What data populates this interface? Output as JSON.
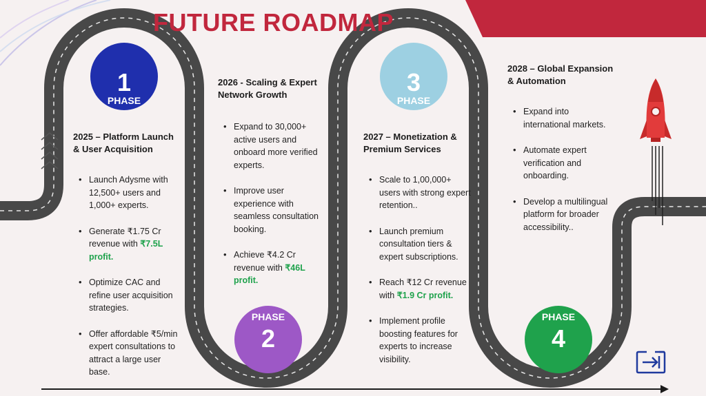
{
  "title": "FUTURE ROADMAP",
  "colors": {
    "brand_red": "#c1273d",
    "phase1": "#1f2fad",
    "phase2": "#9d58c6",
    "phase3": "#9dd0e2",
    "phase4": "#1fa24c",
    "highlight": "#1fa24c",
    "road": "#444444"
  },
  "phases": [
    {
      "number": "1",
      "label": "PHASE"
    },
    {
      "number": "2",
      "label": "PHASE"
    },
    {
      "number": "3",
      "label": "PHASE"
    },
    {
      "number": "4",
      "label": "PHASE"
    }
  ],
  "sections": [
    {
      "heading": "2025 – Platform Launch\n& User Acquisition",
      "bullets": [
        {
          "text": "Launch Adysme with 12,500+ users and 1,000+ experts."
        },
        {
          "text": "Generate ₹1.75 Cr revenue with ",
          "highlight": "₹7.5L profit."
        },
        {
          "text": "Optimize CAC and refine user acquisition strategies."
        },
        {
          "text": "Offer affordable ₹5/min expert consultations to attract a large user base."
        }
      ]
    },
    {
      "heading": "2026 - Scaling & Expert\nNetwork Growth",
      "bullets": [
        {
          "text": "Expand to 30,000+ active users and onboard more verified experts."
        },
        {
          "text": "Improve user experience with seamless consultation booking."
        },
        {
          "text": "Achieve ₹4.2 Cr revenue with ",
          "highlight": "₹46L profit."
        }
      ]
    },
    {
      "heading": "2027 – Monetization &\nPremium Services",
      "bullets": [
        {
          "text": "Scale to 1,00,000+ users with strong expert retention.."
        },
        {
          "text": "Launch premium consultation tiers & expert subscriptions."
        },
        {
          "text": "Reach ₹12 Cr revenue with ",
          "highlight": "₹1.9 Cr profit."
        },
        {
          "text": "Implement profile boosting features for experts to increase visibility."
        }
      ]
    },
    {
      "heading": "2028 – Global Expansion\n& Automation",
      "bullets": [
        {
          "text": "Expand into international markets."
        },
        {
          "text": "Automate expert verification and onboarding."
        },
        {
          "text": "Develop a multilingual platform for broader accessibility.."
        }
      ]
    }
  ],
  "icons": {
    "exit": "exit-icon",
    "rocket": "rocket-icon",
    "chevrons": "chevron-up-icon"
  }
}
